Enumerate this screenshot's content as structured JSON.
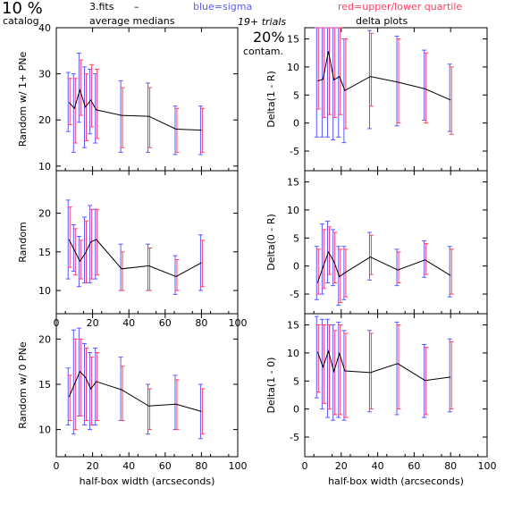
{
  "header": {
    "pct": "10 %",
    "catalog": "catalog",
    "fits": "3.fits",
    "dash": "–",
    "avg": "average medians",
    "blue": "blue=sigma",
    "red": "red=upper/lower quartile",
    "trials": "19+ trials",
    "contam_pct": "20%",
    "contam": "contam.",
    "delta": "delta plots",
    "blue_color": "#5a5aff",
    "red_color": "#ff4060"
  },
  "chart_data": [
    {
      "type": "line",
      "ylabel": "Random w/ 1+ PNe",
      "xlabel": "",
      "xlim": [
        0,
        100
      ],
      "ylim": [
        9,
        40
      ],
      "xticks": [
        0,
        20,
        40,
        60,
        80,
        100
      ],
      "yticks": [
        10,
        20,
        30,
        40
      ],
      "xtick_labels_shown": false,
      "x": [
        7,
        10,
        13,
        16,
        19,
        22,
        36,
        51,
        66,
        80
      ],
      "y": [
        23.8,
        22.5,
        26.5,
        22.8,
        24.3,
        22.2,
        21,
        20.8,
        18,
        17.8
      ],
      "sigma": [
        [
          17.5,
          30.3
        ],
        [
          13.0,
          30.0
        ],
        [
          19.5,
          34.5
        ],
        [
          14.0,
          31.5
        ],
        [
          17.0,
          31.0
        ],
        [
          15.0,
          30.0
        ],
        [
          13.0,
          28.5
        ],
        [
          13.0,
          28.0
        ],
        [
          12.5,
          23.0
        ],
        [
          12.5,
          23.0
        ]
      ],
      "quartile": [
        [
          19.0,
          29.0
        ],
        [
          15.0,
          29.0
        ],
        [
          21.0,
          33.0
        ],
        [
          15.5,
          30.0
        ],
        [
          18.5,
          32.0
        ],
        [
          16.0,
          31.0
        ],
        [
          14.0,
          27.0
        ],
        [
          14.0,
          27.0
        ],
        [
          13.0,
          22.5
        ],
        [
          13.0,
          22.5
        ]
      ]
    },
    {
      "type": "line",
      "ylabel": "Delta(1 - R)",
      "xlabel": "",
      "xlim": [
        0,
        100
      ],
      "ylim": [
        -8.5,
        17
      ],
      "xticks": [
        0,
        20,
        40,
        60,
        80,
        100
      ],
      "yticks": [
        -5,
        0,
        5,
        10,
        15
      ],
      "xtick_labels_shown": false,
      "x": [
        7,
        10,
        13,
        16,
        19,
        22,
        36,
        51,
        66,
        80
      ],
      "y": [
        7.5,
        7.8,
        12.8,
        7.7,
        8.3,
        5.8,
        8.3,
        7.3,
        6.1,
        4.1
      ],
      "sigma": [
        [
          -2.5,
          17.0
        ],
        [
          -2.5,
          17.0
        ],
        [
          -2.5,
          17.0
        ],
        [
          -3.0,
          17.0
        ],
        [
          -2.5,
          17.0
        ],
        [
          -3.5,
          15.0
        ],
        [
          -1.0,
          16.5
        ],
        [
          -0.5,
          15.5
        ],
        [
          0.5,
          13.0
        ],
        [
          -1.5,
          10.5
        ]
      ],
      "quartile": [
        [
          2.5,
          17.0
        ],
        [
          1.0,
          17.0
        ],
        [
          1.5,
          17.0
        ],
        [
          1.0,
          17.0
        ],
        [
          1.5,
          17.0
        ],
        [
          -1.0,
          15.0
        ],
        [
          3.0,
          16.0
        ],
        [
          0.0,
          15.0
        ],
        [
          0.0,
          12.5
        ],
        [
          -2.0,
          10.0
        ]
      ]
    },
    {
      "type": "line",
      "ylabel": "Random",
      "xlabel": "",
      "xlim": [
        0,
        100
      ],
      "ylim": [
        7,
        25.5
      ],
      "xticks": [
        0,
        20,
        40,
        60,
        80,
        100
      ],
      "yticks": [
        10,
        15,
        20
      ],
      "xtick_labels_shown": true,
      "x": [
        7,
        10,
        13,
        16,
        19,
        22,
        36,
        51,
        66,
        80
      ],
      "y": [
        16.6,
        15.2,
        13.8,
        14.8,
        16.3,
        16.6,
        12.8,
        13.2,
        11.8,
        13.6
      ],
      "sigma": [
        [
          11.5,
          21.7
        ],
        [
          12.5,
          18.5
        ],
        [
          10.5,
          17.0
        ],
        [
          11.0,
          19.5
        ],
        [
          11.0,
          21.0
        ],
        [
          11.5,
          20.5
        ],
        [
          10.0,
          16.0
        ],
        [
          10.0,
          16.0
        ],
        [
          9.5,
          14.5
        ],
        [
          10.0,
          17.2
        ]
      ],
      "quartile": [
        [
          13.0,
          20.8
        ],
        [
          12.0,
          18.0
        ],
        [
          11.5,
          16.5
        ],
        [
          11.0,
          19.0
        ],
        [
          11.5,
          20.5
        ],
        [
          12.0,
          20.5
        ],
        [
          10.0,
          15.0
        ],
        [
          10.0,
          15.5
        ],
        [
          10.0,
          14.0
        ],
        [
          10.5,
          16.5
        ]
      ]
    },
    {
      "type": "line",
      "ylabel": "Delta(0 - R)",
      "xlabel": "",
      "xlim": [
        0,
        100
      ],
      "ylim": [
        -8.5,
        17
      ],
      "xticks": [
        0,
        20,
        40,
        60,
        80,
        100
      ],
      "yticks": [
        -5,
        0,
        5,
        10,
        15
      ],
      "xtick_labels_shown": false,
      "x": [
        7,
        10,
        13,
        16,
        19,
        22,
        36,
        51,
        66,
        80
      ],
      "y": [
        -3.0,
        -0.2,
        2.5,
        0.8,
        -1.9,
        -1.2,
        1.6,
        -0.7,
        1.1,
        -1.7
      ],
      "sigma": [
        [
          -6.0,
          3.5
        ],
        [
          -5.0,
          7.5
        ],
        [
          -3.0,
          8.0
        ],
        [
          -3.5,
          6.5
        ],
        [
          -7.0,
          3.5
        ],
        [
          -6.0,
          3.5
        ],
        [
          -2.5,
          6.0
        ],
        [
          -3.5,
          3.0
        ],
        [
          -2.0,
          4.5
        ],
        [
          -5.5,
          3.5
        ]
      ],
      "quartile": [
        [
          -5.0,
          3.0
        ],
        [
          -4.0,
          6.5
        ],
        [
          -1.5,
          7.0
        ],
        [
          -3.0,
          6.0
        ],
        [
          -6.5,
          3.0
        ],
        [
          -5.5,
          3.0
        ],
        [
          -1.5,
          5.5
        ],
        [
          -3.0,
          2.5
        ],
        [
          -1.5,
          4.0
        ],
        [
          -5.0,
          3.0
        ]
      ]
    },
    {
      "type": "line",
      "ylabel": "Random w/ 0 PNe",
      "xlabel": "half-box width (arcseconds)",
      "xlim": [
        0,
        100
      ],
      "ylim": [
        7,
        22.8
      ],
      "xticks": [
        0,
        20,
        40,
        60,
        80,
        100
      ],
      "yticks": [
        10,
        15,
        20
      ],
      "xtick_labels_shown": true,
      "x": [
        7,
        10,
        13,
        16,
        19,
        22,
        36,
        51,
        66,
        80
      ],
      "y": [
        13.6,
        15.0,
        16.4,
        15.8,
        14.5,
        15.3,
        14.4,
        12.6,
        12.8,
        12.0
      ],
      "sigma": [
        [
          10.5,
          16.8
        ],
        [
          9.5,
          21.0
        ],
        [
          11.5,
          21.2
        ],
        [
          10.5,
          19.5
        ],
        [
          10.0,
          18.5
        ],
        [
          10.5,
          19.0
        ],
        [
          11.0,
          18.0
        ],
        [
          9.5,
          15.0
        ],
        [
          10.0,
          16.0
        ],
        [
          9.0,
          15.0
        ]
      ],
      "quartile": [
        [
          11.0,
          16.0
        ],
        [
          10.0,
          20.0
        ],
        [
          11.5,
          20.0
        ],
        [
          11.0,
          19.0
        ],
        [
          10.5,
          18.0
        ],
        [
          11.0,
          18.5
        ],
        [
          11.0,
          17.0
        ],
        [
          10.0,
          14.5
        ],
        [
          10.0,
          15.5
        ],
        [
          9.5,
          14.5
        ]
      ]
    },
    {
      "type": "line",
      "ylabel": "Delta(1 - 0)",
      "xlabel": "half-box width (arcseconds)",
      "xlim": [
        0,
        100
      ],
      "ylim": [
        -8.5,
        17
      ],
      "xticks": [
        0,
        20,
        40,
        60,
        80,
        100
      ],
      "yticks": [
        -5,
        0,
        5,
        10,
        15
      ],
      "xtick_labels_shown": true,
      "x": [
        7,
        10,
        13,
        16,
        19,
        22,
        36,
        51,
        66,
        80
      ],
      "y": [
        10.2,
        7.5,
        10.3,
        6.7,
        9.9,
        6.8,
        6.5,
        8.1,
        5.1,
        5.7
      ],
      "sigma": [
        [
          2.0,
          16.5
        ],
        [
          0.0,
          16.0
        ],
        [
          -1.5,
          16.0
        ],
        [
          -2.0,
          15.0
        ],
        [
          -1.5,
          15.5
        ],
        [
          -2.0,
          14.0
        ],
        [
          -0.5,
          14.0
        ],
        [
          -1.0,
          15.5
        ],
        [
          -1.5,
          11.5
        ],
        [
          -0.5,
          12.5
        ]
      ],
      "quartile": [
        [
          3.0,
          15.0
        ],
        [
          1.0,
          15.0
        ],
        [
          0.0,
          15.0
        ],
        [
          -1.0,
          14.0
        ],
        [
          -1.0,
          15.0
        ],
        [
          -1.5,
          13.5
        ],
        [
          0.0,
          13.5
        ],
        [
          0.0,
          15.0
        ],
        [
          -1.0,
          11.0
        ],
        [
          0.0,
          12.0
        ]
      ]
    }
  ]
}
